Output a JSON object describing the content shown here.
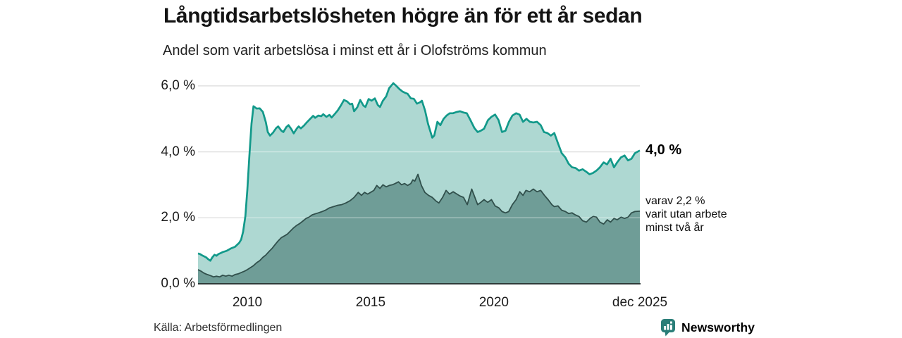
{
  "header": {
    "title": "Långtidsarbetslösheten högre än för ett år sedan",
    "subtitle": "Andel som varit arbetslösa i minst ett år i Olofströms kommun"
  },
  "annotations": {
    "series1_end_label": "4,0 %",
    "series2_note": [
      "varav 2,2 %",
      "varit utan arbete",
      "minst två år"
    ]
  },
  "source": {
    "label": "Källa: Arbetsförmedlingen"
  },
  "branding": {
    "name": "Newsworthy",
    "icon": "bar-chart-speech-bubble-icon",
    "color": "#2a7e78"
  },
  "colors": {
    "series1_line": "#12998a",
    "series1_fill": "#aed8d2",
    "series2_line": "#31504c",
    "series2_fill": "#6f9d97",
    "gridline": "#cfcfcf",
    "gridline_overlay": "rgba(255,255,255,0.40)",
    "axis_line": "#2e3a39",
    "tick_text": "#1c1c1c"
  },
  "chart_data": {
    "type": "area",
    "title": "Långtidsarbetslösheten högre än för ett år sedan",
    "subtitle": "Andel som varit arbetslösa i minst ett år i Olofströms kommun",
    "unit": "%",
    "grid": true,
    "legend": "end-labels",
    "xlim": [
      2008,
      2025.92
    ],
    "ylim": [
      0,
      6.4
    ],
    "y_axis": {
      "ticks": [
        {
          "label": "6,0 %",
          "value": 6
        },
        {
          "label": "4,0 %",
          "value": 4
        },
        {
          "label": "2,0 %",
          "value": 2
        },
        {
          "label": "0,0 %",
          "value": 0
        }
      ]
    },
    "x_axis": {
      "ticks": [
        {
          "label": "2010",
          "t": 2010
        },
        {
          "label": "2015",
          "t": 2015
        },
        {
          "label": "2020",
          "t": 2020
        },
        {
          "label": "dec 2025",
          "t": 2025.92
        }
      ]
    },
    "series": [
      {
        "name": "Arbetslösa minst ett år",
        "end_label": "4,0 %",
        "end_value": 4.0,
        "points": [
          [
            2008.0,
            0.92
          ],
          [
            2008.08,
            0.9
          ],
          [
            2008.17,
            0.86
          ],
          [
            2008.25,
            0.83
          ],
          [
            2008.33,
            0.8
          ],
          [
            2008.42,
            0.74
          ],
          [
            2008.5,
            0.7
          ],
          [
            2008.58,
            0.8
          ],
          [
            2008.67,
            0.88
          ],
          [
            2008.75,
            0.85
          ],
          [
            2008.83,
            0.9
          ],
          [
            2008.92,
            0.93
          ],
          [
            2009.0,
            0.96
          ],
          [
            2009.17,
            1.0
          ],
          [
            2009.33,
            1.07
          ],
          [
            2009.5,
            1.12
          ],
          [
            2009.67,
            1.24
          ],
          [
            2009.75,
            1.34
          ],
          [
            2009.83,
            1.58
          ],
          [
            2009.92,
            2.05
          ],
          [
            2010.0,
            2.85
          ],
          [
            2010.08,
            3.85
          ],
          [
            2010.17,
            4.85
          ],
          [
            2010.25,
            5.38
          ],
          [
            2010.38,
            5.31
          ],
          [
            2010.5,
            5.32
          ],
          [
            2010.63,
            5.21
          ],
          [
            2010.75,
            4.9
          ],
          [
            2010.83,
            4.6
          ],
          [
            2010.92,
            4.49
          ],
          [
            2011.04,
            4.58
          ],
          [
            2011.17,
            4.72
          ],
          [
            2011.25,
            4.77
          ],
          [
            2011.38,
            4.64
          ],
          [
            2011.46,
            4.6
          ],
          [
            2011.58,
            4.75
          ],
          [
            2011.67,
            4.81
          ],
          [
            2011.79,
            4.68
          ],
          [
            2011.88,
            4.56
          ],
          [
            2012.0,
            4.7
          ],
          [
            2012.08,
            4.77
          ],
          [
            2012.17,
            4.71
          ],
          [
            2012.29,
            4.79
          ],
          [
            2012.42,
            4.9
          ],
          [
            2012.54,
            4.99
          ],
          [
            2012.67,
            5.09
          ],
          [
            2012.75,
            5.03
          ],
          [
            2012.88,
            5.1
          ],
          [
            2013.0,
            5.08
          ],
          [
            2013.08,
            5.14
          ],
          [
            2013.21,
            5.06
          ],
          [
            2013.33,
            5.12
          ],
          [
            2013.42,
            5.04
          ],
          [
            2013.54,
            5.14
          ],
          [
            2013.67,
            5.26
          ],
          [
            2013.79,
            5.4
          ],
          [
            2013.92,
            5.57
          ],
          [
            2014.04,
            5.53
          ],
          [
            2014.17,
            5.44
          ],
          [
            2014.25,
            5.46
          ],
          [
            2014.33,
            5.23
          ],
          [
            2014.46,
            5.35
          ],
          [
            2014.58,
            5.57
          ],
          [
            2014.71,
            5.4
          ],
          [
            2014.79,
            5.36
          ],
          [
            2014.92,
            5.6
          ],
          [
            2015.04,
            5.55
          ],
          [
            2015.17,
            5.62
          ],
          [
            2015.29,
            5.42
          ],
          [
            2015.38,
            5.36
          ],
          [
            2015.5,
            5.55
          ],
          [
            2015.63,
            5.68
          ],
          [
            2015.75,
            5.93
          ],
          [
            2015.92,
            6.08
          ],
          [
            2016.04,
            6.0
          ],
          [
            2016.17,
            5.9
          ],
          [
            2016.29,
            5.83
          ],
          [
            2016.42,
            5.78
          ],
          [
            2016.5,
            5.76
          ],
          [
            2016.63,
            5.62
          ],
          [
            2016.75,
            5.61
          ],
          [
            2016.88,
            5.46
          ],
          [
            2017.0,
            5.5
          ],
          [
            2017.08,
            5.55
          ],
          [
            2017.21,
            5.25
          ],
          [
            2017.33,
            4.85
          ],
          [
            2017.5,
            4.43
          ],
          [
            2017.58,
            4.49
          ],
          [
            2017.71,
            4.91
          ],
          [
            2017.83,
            4.81
          ],
          [
            2017.96,
            5.0
          ],
          [
            2018.08,
            5.1
          ],
          [
            2018.21,
            5.17
          ],
          [
            2018.34,
            5.17
          ],
          [
            2018.5,
            5.21
          ],
          [
            2018.63,
            5.23
          ],
          [
            2018.77,
            5.19
          ],
          [
            2018.9,
            5.17
          ],
          [
            2019.05,
            4.96
          ],
          [
            2019.21,
            4.72
          ],
          [
            2019.34,
            4.6
          ],
          [
            2019.47,
            4.64
          ],
          [
            2019.6,
            4.7
          ],
          [
            2019.76,
            4.96
          ],
          [
            2019.9,
            5.06
          ],
          [
            2020.05,
            5.13
          ],
          [
            2020.19,
            4.96
          ],
          [
            2020.33,
            4.6
          ],
          [
            2020.47,
            4.64
          ],
          [
            2020.61,
            4.91
          ],
          [
            2020.75,
            5.1
          ],
          [
            2020.9,
            5.17
          ],
          [
            2021.04,
            5.13
          ],
          [
            2021.18,
            4.91
          ],
          [
            2021.32,
            5.0
          ],
          [
            2021.46,
            4.91
          ],
          [
            2021.6,
            4.89
          ],
          [
            2021.75,
            4.91
          ],
          [
            2021.9,
            4.81
          ],
          [
            2022.03,
            4.6
          ],
          [
            2022.17,
            4.57
          ],
          [
            2022.31,
            4.49
          ],
          [
            2022.45,
            4.57
          ],
          [
            2022.6,
            4.26
          ],
          [
            2022.75,
            3.96
          ],
          [
            2022.9,
            3.83
          ],
          [
            2023.03,
            3.64
          ],
          [
            2023.17,
            3.53
          ],
          [
            2023.31,
            3.51
          ],
          [
            2023.45,
            3.43
          ],
          [
            2023.6,
            3.47
          ],
          [
            2023.74,
            3.4
          ],
          [
            2023.88,
            3.32
          ],
          [
            2024.02,
            3.36
          ],
          [
            2024.16,
            3.43
          ],
          [
            2024.3,
            3.53
          ],
          [
            2024.45,
            3.68
          ],
          [
            2024.59,
            3.62
          ],
          [
            2024.73,
            3.79
          ],
          [
            2024.87,
            3.53
          ],
          [
            2025.0,
            3.68
          ],
          [
            2025.15,
            3.83
          ],
          [
            2025.3,
            3.89
          ],
          [
            2025.44,
            3.74
          ],
          [
            2025.58,
            3.79
          ],
          [
            2025.72,
            3.96
          ],
          [
            2025.92,
            4.04
          ]
        ]
      },
      {
        "name": "Varav utan arbete minst två år",
        "end_label": "2,2 %",
        "end_value": 2.2,
        "points": [
          [
            2008.0,
            0.43
          ],
          [
            2008.13,
            0.38
          ],
          [
            2008.25,
            0.32
          ],
          [
            2008.38,
            0.28
          ],
          [
            2008.5,
            0.25
          ],
          [
            2008.63,
            0.21
          ],
          [
            2008.75,
            0.23
          ],
          [
            2008.88,
            0.21
          ],
          [
            2009.0,
            0.26
          ],
          [
            2009.13,
            0.23
          ],
          [
            2009.25,
            0.26
          ],
          [
            2009.38,
            0.23
          ],
          [
            2009.5,
            0.28
          ],
          [
            2009.63,
            0.3
          ],
          [
            2009.75,
            0.34
          ],
          [
            2009.88,
            0.38
          ],
          [
            2010.0,
            0.43
          ],
          [
            2010.13,
            0.49
          ],
          [
            2010.25,
            0.55
          ],
          [
            2010.38,
            0.64
          ],
          [
            2010.5,
            0.7
          ],
          [
            2010.63,
            0.8
          ],
          [
            2010.75,
            0.87
          ],
          [
            2010.88,
            0.98
          ],
          [
            2011.0,
            1.07
          ],
          [
            2011.13,
            1.19
          ],
          [
            2011.25,
            1.3
          ],
          [
            2011.38,
            1.4
          ],
          [
            2011.5,
            1.45
          ],
          [
            2011.63,
            1.51
          ],
          [
            2011.75,
            1.6
          ],
          [
            2011.88,
            1.7
          ],
          [
            2012.0,
            1.77
          ],
          [
            2012.13,
            1.83
          ],
          [
            2012.25,
            1.9
          ],
          [
            2012.38,
            1.98
          ],
          [
            2012.5,
            2.02
          ],
          [
            2012.63,
            2.09
          ],
          [
            2012.75,
            2.12
          ],
          [
            2012.88,
            2.15
          ],
          [
            2013.0,
            2.18
          ],
          [
            2013.17,
            2.23
          ],
          [
            2013.33,
            2.3
          ],
          [
            2013.5,
            2.34
          ],
          [
            2013.67,
            2.38
          ],
          [
            2013.83,
            2.4
          ],
          [
            2014.0,
            2.45
          ],
          [
            2014.17,
            2.52
          ],
          [
            2014.33,
            2.62
          ],
          [
            2014.5,
            2.77
          ],
          [
            2014.63,
            2.68
          ],
          [
            2014.75,
            2.77
          ],
          [
            2014.88,
            2.72
          ],
          [
            2015.0,
            2.77
          ],
          [
            2015.13,
            2.83
          ],
          [
            2015.25,
            2.98
          ],
          [
            2015.38,
            2.89
          ],
          [
            2015.5,
            3.0
          ],
          [
            2015.63,
            2.94
          ],
          [
            2015.75,
            2.98
          ],
          [
            2015.88,
            3.0
          ],
          [
            2016.0,
            3.04
          ],
          [
            2016.13,
            3.09
          ],
          [
            2016.25,
            3.0
          ],
          [
            2016.38,
            3.04
          ],
          [
            2016.5,
            2.98
          ],
          [
            2016.63,
            3.04
          ],
          [
            2016.71,
            3.15
          ],
          [
            2016.79,
            3.11
          ],
          [
            2016.92,
            3.32
          ],
          [
            2017.06,
            2.98
          ],
          [
            2017.2,
            2.77
          ],
          [
            2017.35,
            2.68
          ],
          [
            2017.5,
            2.62
          ],
          [
            2017.65,
            2.51
          ],
          [
            2017.77,
            2.45
          ],
          [
            2017.92,
            2.62
          ],
          [
            2018.06,
            2.83
          ],
          [
            2018.2,
            2.72
          ],
          [
            2018.35,
            2.79
          ],
          [
            2018.5,
            2.72
          ],
          [
            2018.63,
            2.66
          ],
          [
            2018.77,
            2.62
          ],
          [
            2018.92,
            2.4
          ],
          [
            2019.1,
            2.87
          ],
          [
            2019.34,
            2.4
          ],
          [
            2019.47,
            2.47
          ],
          [
            2019.6,
            2.55
          ],
          [
            2019.75,
            2.47
          ],
          [
            2019.9,
            2.55
          ],
          [
            2020.05,
            2.36
          ],
          [
            2020.2,
            2.3
          ],
          [
            2020.33,
            2.19
          ],
          [
            2020.47,
            2.15
          ],
          [
            2020.6,
            2.19
          ],
          [
            2020.75,
            2.4
          ],
          [
            2020.9,
            2.55
          ],
          [
            2021.05,
            2.79
          ],
          [
            2021.18,
            2.68
          ],
          [
            2021.3,
            2.83
          ],
          [
            2021.45,
            2.79
          ],
          [
            2021.6,
            2.87
          ],
          [
            2021.75,
            2.79
          ],
          [
            2021.9,
            2.83
          ],
          [
            2022.05,
            2.68
          ],
          [
            2022.2,
            2.55
          ],
          [
            2022.35,
            2.4
          ],
          [
            2022.45,
            2.34
          ],
          [
            2022.6,
            2.36
          ],
          [
            2022.75,
            2.23
          ],
          [
            2022.9,
            2.19
          ],
          [
            2023.03,
            2.13
          ],
          [
            2023.17,
            2.15
          ],
          [
            2023.3,
            2.09
          ],
          [
            2023.45,
            2.04
          ],
          [
            2023.6,
            1.91
          ],
          [
            2023.75,
            1.87
          ],
          [
            2023.9,
            1.98
          ],
          [
            2024.03,
            2.04
          ],
          [
            2024.16,
            2.02
          ],
          [
            2024.3,
            1.87
          ],
          [
            2024.45,
            1.81
          ],
          [
            2024.6,
            1.94
          ],
          [
            2024.73,
            1.87
          ],
          [
            2024.87,
            1.98
          ],
          [
            2025.0,
            1.94
          ],
          [
            2025.16,
            2.02
          ],
          [
            2025.3,
            1.98
          ],
          [
            2025.44,
            2.02
          ],
          [
            2025.58,
            2.15
          ],
          [
            2025.72,
            2.19
          ],
          [
            2025.92,
            2.2
          ]
        ]
      }
    ]
  }
}
